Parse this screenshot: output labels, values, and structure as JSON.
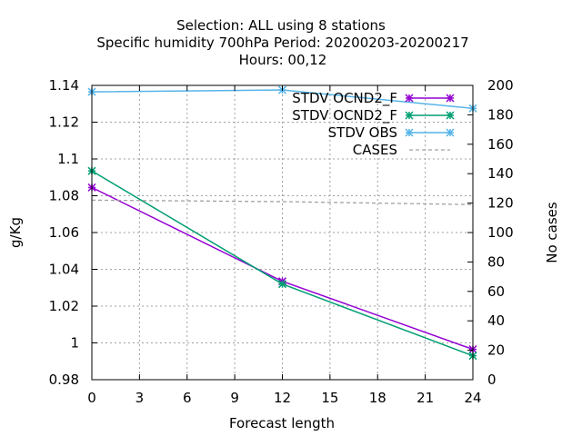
{
  "chart_data": {
    "type": "line",
    "title_lines": [
      "Selection: ALL using     8 stations",
      "Specific humidity 700hPa   Period: 20200203-20200217",
      "Hours:  00,12"
    ],
    "xlabel": "Forecast length",
    "ylabel": "g/Kg",
    "y2label": "No cases",
    "x": [
      0,
      12,
      24
    ],
    "xlim": [
      0,
      24
    ],
    "xticks": [
      0,
      3,
      6,
      9,
      12,
      15,
      18,
      21,
      24
    ],
    "ylim": [
      0.98,
      1.14
    ],
    "yticks": [
      "0.98",
      "1",
      "1.02",
      "1.04",
      "1.06",
      "1.08",
      "1.1",
      "1.12",
      "1.14"
    ],
    "y2lim": [
      0,
      200
    ],
    "y2ticks": [
      0,
      20,
      40,
      60,
      80,
      100,
      120,
      140,
      160,
      180,
      200
    ],
    "grid": true,
    "legend_position": "top-right",
    "series": [
      {
        "name": "STDV OCND2_F",
        "color": "#9400d3",
        "axis": "y",
        "marker": "x",
        "values": [
          1.0845,
          1.0335,
          0.9965
        ]
      },
      {
        "name": "STDV OCND2_F",
        "color": "#009e73",
        "axis": "y",
        "marker": "x",
        "values": [
          1.0935,
          1.032,
          0.993
        ]
      },
      {
        "name": "STDV OBS",
        "color": "#56b4e9",
        "axis": "y",
        "marker": "x",
        "values": [
          1.1365,
          1.1375,
          1.1275
        ]
      },
      {
        "name": "CASES",
        "color": "#a0a0a0",
        "axis": "y2",
        "marker": "none",
        "dashed": true,
        "values": [
          122,
          121,
          119
        ]
      }
    ]
  }
}
